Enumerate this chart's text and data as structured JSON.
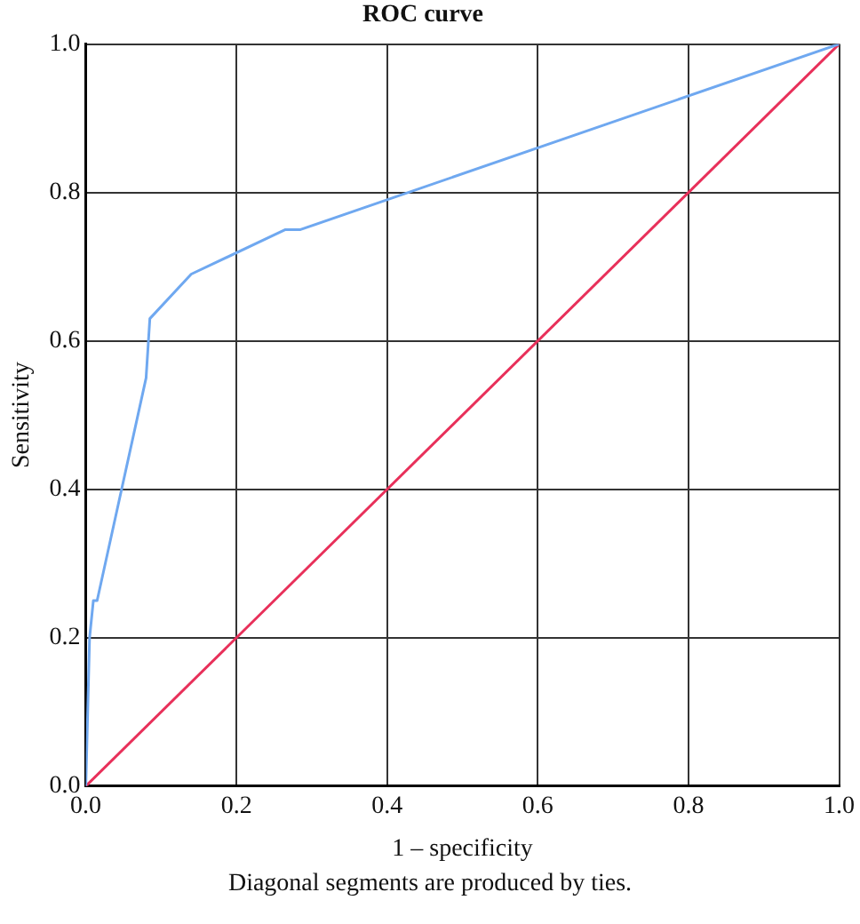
{
  "chart_data": {
    "type": "line",
    "title": "ROC curve",
    "xlabel": "1 – specificity",
    "ylabel": "Sensitivity",
    "annotations": [
      "Diagonal segments are produced by ties."
    ],
    "xlim": [
      0,
      1
    ],
    "ylim": [
      0,
      1
    ],
    "xticks": [
      {
        "value": 0,
        "label": "0.0"
      },
      {
        "value": 0.2,
        "label": "0.2"
      },
      {
        "value": 0.4,
        "label": "0.4"
      },
      {
        "value": 0.6,
        "label": "0.6"
      },
      {
        "value": 0.8,
        "label": "0.8"
      },
      {
        "value": 1,
        "label": "1.0"
      }
    ],
    "yticks": [
      {
        "value": 0,
        "label": "0.0"
      },
      {
        "value": 0.2,
        "label": "0.2"
      },
      {
        "value": 0.4,
        "label": "0.4"
      },
      {
        "value": 0.6,
        "label": "0.6"
      },
      {
        "value": 0.8,
        "label": "0.8"
      },
      {
        "value": 1,
        "label": "1.0"
      }
    ],
    "grid": true,
    "legend": false,
    "marker": "none",
    "line_style": "solid",
    "series": [
      {
        "color": "#6fa8f0",
        "x": [
          0,
          0.005,
          0.01,
          0.015,
          0.08,
          0.085,
          0.14,
          0.265,
          0.285,
          1
        ],
        "values": [
          0,
          0.2,
          0.25,
          0.25,
          0.55,
          0.63,
          0.69,
          0.75,
          0.75,
          1
        ]
      },
      {
        "color": "#e8305a",
        "x": [
          0,
          1
        ],
        "values": [
          0,
          1
        ]
      }
    ]
  }
}
